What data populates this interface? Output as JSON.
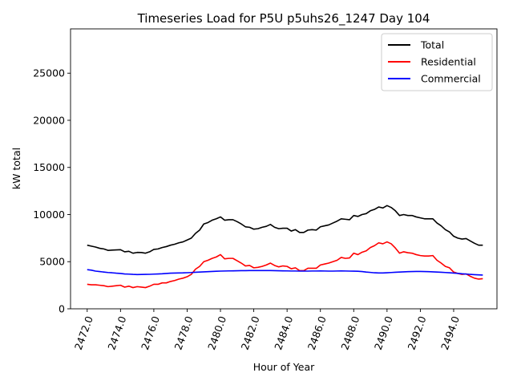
{
  "chart_data": {
    "type": "line",
    "title": "Timeseries Load for P5U p5uhs26_1247  Day 104",
    "xlabel": "Hour of Year",
    "ylabel": "kW total",
    "xlim": [
      2471.0,
      2496.6
    ],
    "ylim": [
      0,
      29700
    ],
    "x_ticks": [
      2472.0,
      2474.0,
      2476.0,
      2478.0,
      2480.0,
      2482.0,
      2484.0,
      2486.0,
      2488.0,
      2490.0,
      2492.0,
      2494.0
    ],
    "x_tick_labels": [
      "2472.0",
      "2474.0",
      "2476.0",
      "2478.0",
      "2480.0",
      "2482.0",
      "2484.0",
      "2486.0",
      "2488.0",
      "2490.0",
      "2492.0",
      "2494.0"
    ],
    "y_ticks": [
      0,
      5000,
      10000,
      15000,
      20000,
      25000
    ],
    "y_tick_labels": [
      "0",
      "5000",
      "10000",
      "15000",
      "20000",
      "25000"
    ],
    "legend_position": "top-right",
    "x_start": 2472.0,
    "x_step": 0.25,
    "series": [
      {
        "name": "Total",
        "color": "#000000",
        "values": [
          6750,
          6650,
          6550,
          6420,
          6350,
          6200,
          6230,
          6250,
          6270,
          6050,
          6100,
          5900,
          5980,
          5970,
          5900,
          6050,
          6300,
          6350,
          6500,
          6600,
          6750,
          6850,
          7000,
          7100,
          7300,
          7500,
          8000,
          8350,
          9000,
          9150,
          9400,
          9550,
          9750,
          9400,
          9450,
          9450,
          9250,
          9000,
          8700,
          8650,
          8450,
          8500,
          8650,
          8750,
          8950,
          8650,
          8500,
          8550,
          8550,
          8250,
          8400,
          8100,
          8100,
          8350,
          8400,
          8350,
          8700,
          8800,
          8900,
          9100,
          9300,
          9550,
          9500,
          9450,
          9900,
          9800,
          10000,
          10100,
          10400,
          10550,
          10800,
          10700,
          10950,
          10750,
          10400,
          9900,
          10000,
          9900,
          9900,
          9750,
          9650,
          9550,
          9550,
          9550,
          9100,
          8800,
          8400,
          8150,
          7700,
          7500,
          7400,
          7450,
          7200,
          6950,
          6750,
          6750
        ]
      },
      {
        "name": "Residential",
        "color": "#ff0000",
        "values": [
          2600,
          2550,
          2550,
          2500,
          2450,
          2350,
          2400,
          2450,
          2500,
          2300,
          2400,
          2250,
          2350,
          2300,
          2250,
          2400,
          2600,
          2600,
          2750,
          2750,
          2900,
          3000,
          3150,
          3250,
          3400,
          3650,
          4200,
          4500,
          5000,
          5150,
          5350,
          5500,
          5750,
          5300,
          5350,
          5350,
          5100,
          4850,
          4550,
          4600,
          4350,
          4400,
          4500,
          4650,
          4850,
          4600,
          4450,
          4550,
          4500,
          4250,
          4350,
          4050,
          4050,
          4300,
          4300,
          4300,
          4650,
          4750,
          4850,
          5000,
          5150,
          5450,
          5350,
          5400,
          5900,
          5750,
          6000,
          6150,
          6500,
          6700,
          7000,
          6900,
          7100,
          6900,
          6450,
          5900,
          6050,
          5950,
          5900,
          5750,
          5650,
          5600,
          5600,
          5650,
          5150,
          4850,
          4500,
          4350,
          3900,
          3750,
          3650,
          3700,
          3450,
          3250,
          3150,
          3200
        ]
      },
      {
        "name": "Commercial",
        "color": "#0000ff",
        "values": [
          4150,
          4100,
          4000,
          3950,
          3900,
          3850,
          3820,
          3780,
          3750,
          3700,
          3680,
          3650,
          3630,
          3640,
          3650,
          3660,
          3680,
          3700,
          3720,
          3750,
          3780,
          3790,
          3800,
          3810,
          3830,
          3850,
          3880,
          3900,
          3920,
          3940,
          3960,
          3980,
          4000,
          4010,
          4020,
          4030,
          4040,
          4050,
          4050,
          4060,
          4060,
          4060,
          4060,
          4060,
          4060,
          4050,
          4040,
          4030,
          4020,
          4010,
          4010,
          4000,
          4000,
          4000,
          4010,
          4010,
          4020,
          4010,
          4000,
          4000,
          4010,
          4020,
          4010,
          4000,
          3990,
          3980,
          3950,
          3900,
          3860,
          3820,
          3800,
          3800,
          3820,
          3850,
          3880,
          3900,
          3920,
          3940,
          3950,
          3960,
          3960,
          3950,
          3940,
          3920,
          3900,
          3880,
          3850,
          3820,
          3790,
          3760,
          3720,
          3690,
          3650,
          3620,
          3600,
          3580
        ]
      }
    ]
  }
}
